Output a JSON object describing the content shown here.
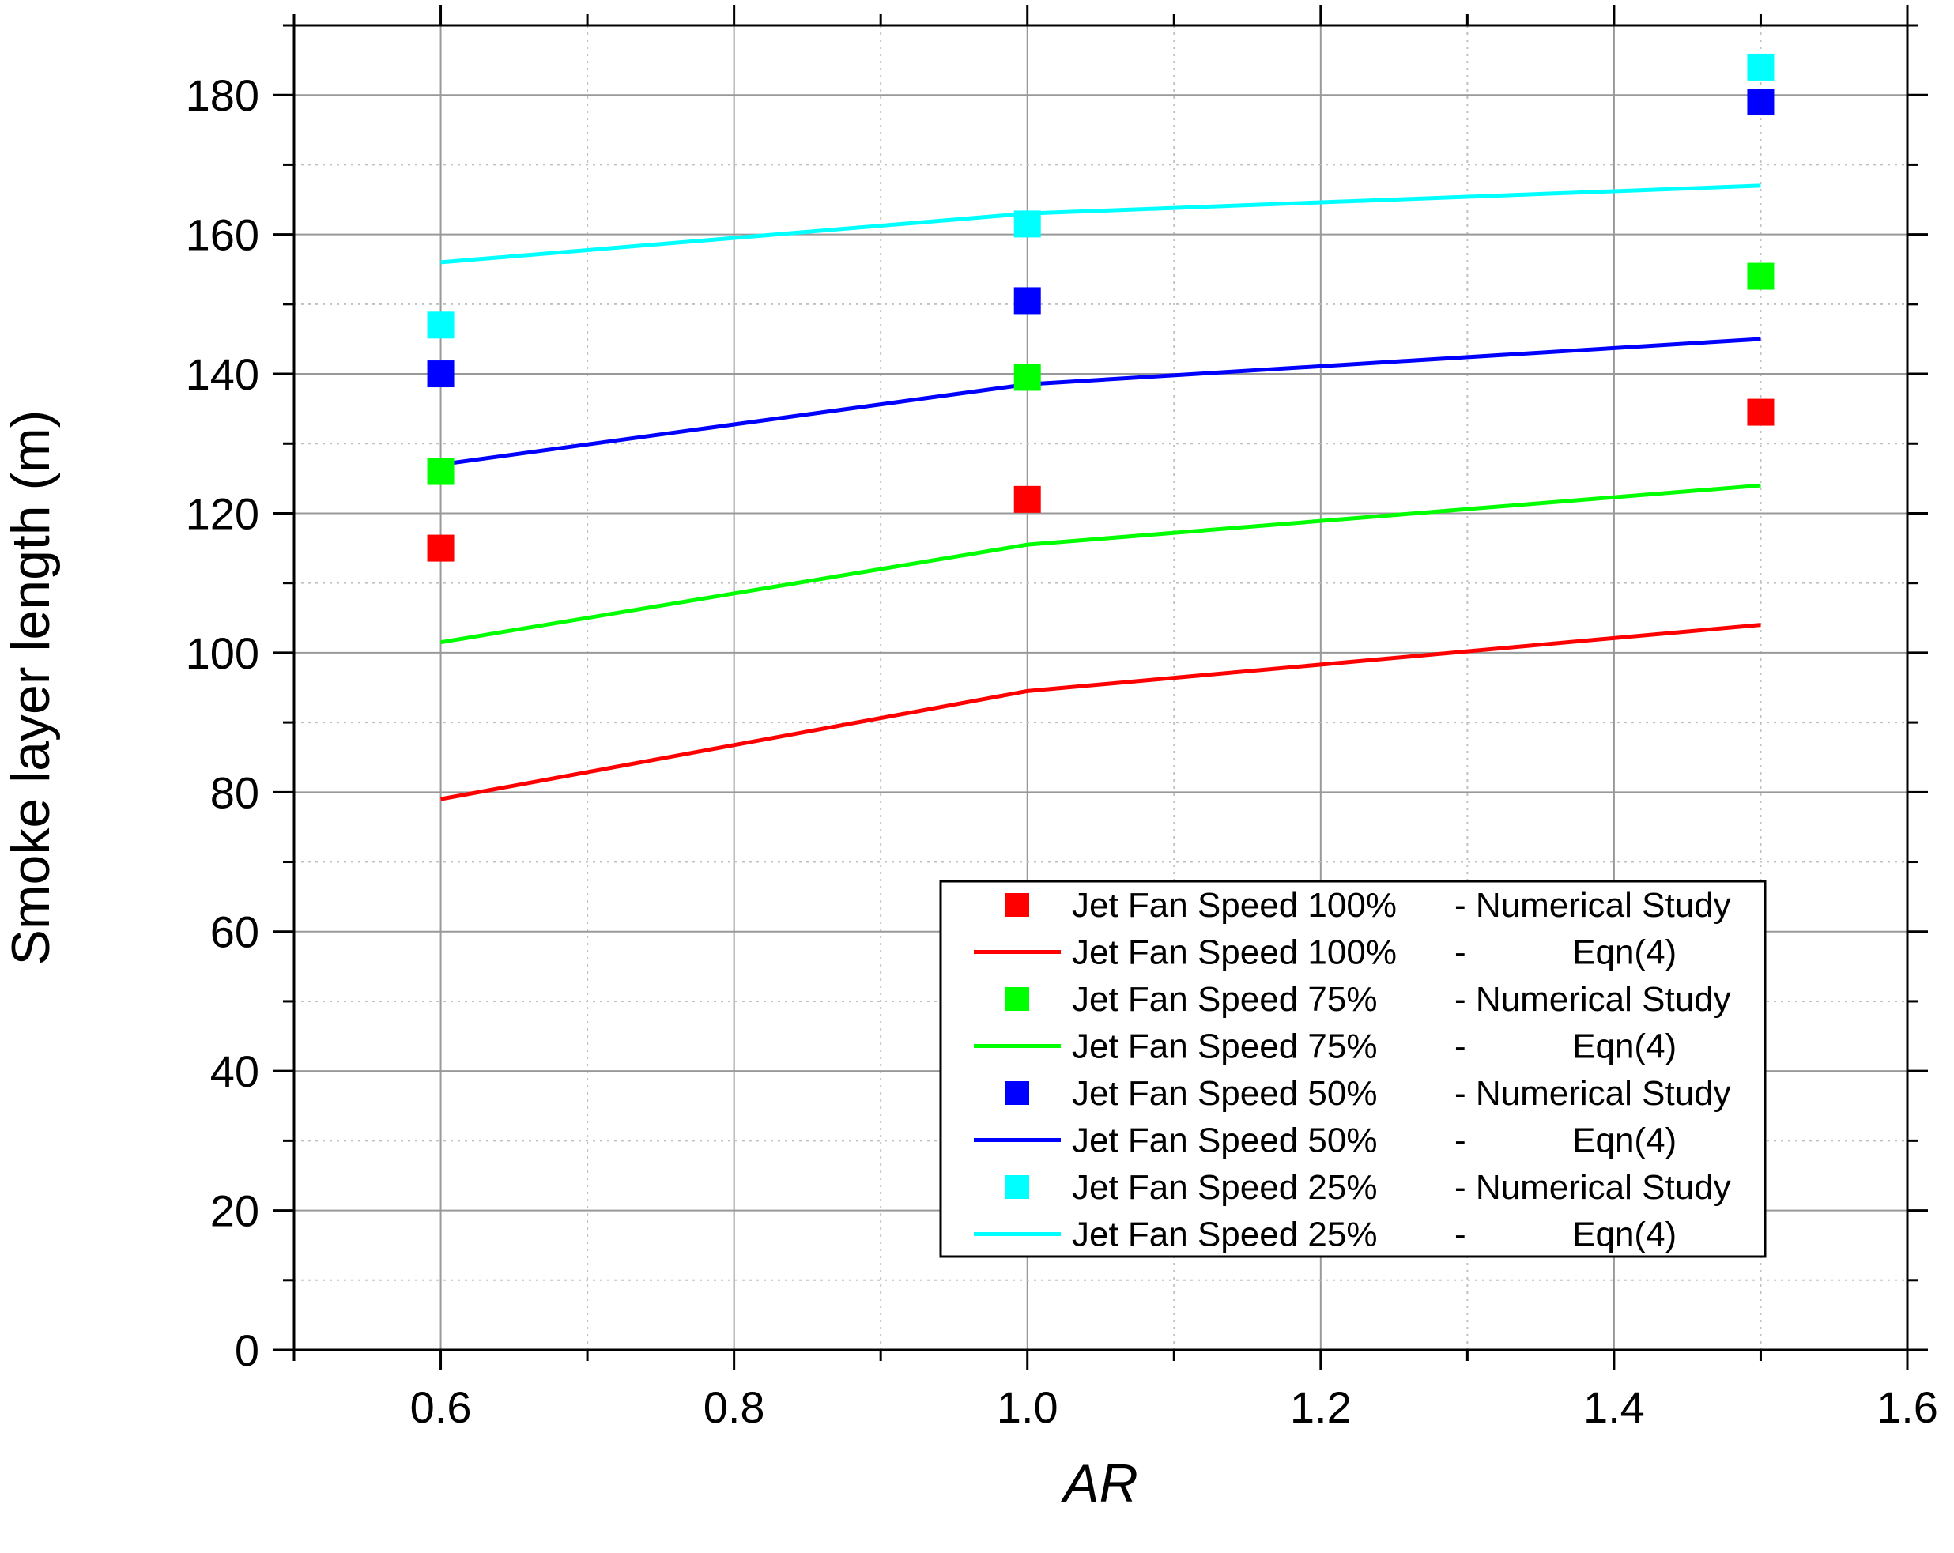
{
  "chart_data": {
    "type": "line+scatter",
    "xlabel": "AR",
    "ylabel": "Smoke layer length (m)",
    "xlim": [
      0.5,
      1.6
    ],
    "ylim": [
      0,
      190
    ],
    "x_ticks": [
      0.6,
      0.8,
      1.0,
      1.2,
      1.4,
      1.6
    ],
    "x_tick_labels": [
      "0.6",
      "0.8",
      "1.0",
      "1.2",
      "1.4",
      "1.6"
    ],
    "y_ticks": [
      0,
      20,
      40,
      60,
      80,
      100,
      120,
      140,
      160,
      180
    ],
    "y_tick_labels": [
      "0",
      "20",
      "40",
      "60",
      "80",
      "100",
      "120",
      "140",
      "160",
      "180"
    ],
    "grid": true,
    "legend_position": "bottom-right",
    "x": [
      0.6,
      1.0,
      1.5
    ],
    "series": [
      {
        "name": "Jet Fan Speed 100%",
        "kind": "scatter",
        "label_tail": "- Numerical Study",
        "color": "#ff0000",
        "values": [
          115,
          122,
          134.5
        ]
      },
      {
        "name": "Jet Fan Speed 100%",
        "kind": "line",
        "label_tail": "-           Eqn(4)",
        "color": "#ff0000",
        "values": [
          79,
          94.5,
          104
        ]
      },
      {
        "name": "Jet Fan Speed 75%",
        "kind": "scatter",
        "label_tail": "- Numerical Study",
        "color": "#00ff00",
        "values": [
          126,
          139.5,
          154
        ]
      },
      {
        "name": "Jet Fan Speed 75%",
        "kind": "line",
        "label_tail": "-           Eqn(4)",
        "color": "#00ff00",
        "values": [
          101.5,
          115.5,
          124
        ]
      },
      {
        "name": "Jet Fan Speed 50%",
        "kind": "scatter",
        "label_tail": "- Numerical Study",
        "color": "#0000ff",
        "values": [
          140,
          150.5,
          179
        ]
      },
      {
        "name": "Jet Fan Speed 50%",
        "kind": "line",
        "label_tail": "-           Eqn(4)",
        "color": "#0000ff",
        "values": [
          127,
          138.5,
          145
        ]
      },
      {
        "name": "Jet Fan Speed 25%",
        "kind": "scatter",
        "label_tail": "- Numerical Study",
        "color": "#00ffff",
        "values": [
          147,
          161.5,
          184
        ]
      },
      {
        "name": "Jet Fan Speed 25%",
        "kind": "line",
        "label_tail": "-           Eqn(4)",
        "color": "#00ffff",
        "values": [
          156,
          163,
          167
        ]
      }
    ]
  }
}
